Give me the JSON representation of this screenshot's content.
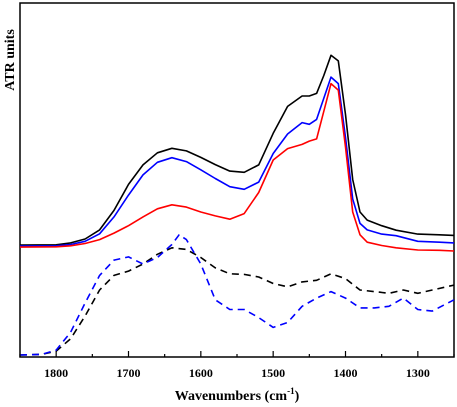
{
  "chart_data": {
    "type": "line",
    "title": "",
    "xlabel": "Wavenumbers (cm",
    "xlabel_sup": "-1",
    "xlabel_close": ")",
    "ylabel": "ATR units",
    "xlim": [
      1850,
      1250
    ],
    "x_reversed": true,
    "ylim": [
      0,
      1
    ],
    "y_ticks_shown": false,
    "grid": false,
    "legend": "none",
    "x_ticks": [
      1800,
      1700,
      1600,
      1500,
      1400,
      1300
    ],
    "series": [
      {
        "color": "#000000",
        "dash": "solid",
        "points": [
          [
            1850,
            0.338
          ],
          [
            1800,
            0.339
          ],
          [
            1780,
            0.345
          ],
          [
            1760,
            0.357
          ],
          [
            1740,
            0.385
          ],
          [
            1720,
            0.445
          ],
          [
            1700,
            0.525
          ],
          [
            1680,
            0.585
          ],
          [
            1660,
            0.622
          ],
          [
            1640,
            0.636
          ],
          [
            1620,
            0.628
          ],
          [
            1600,
            0.608
          ],
          [
            1580,
            0.586
          ],
          [
            1560,
            0.566
          ],
          [
            1540,
            0.562
          ],
          [
            1520,
            0.585
          ],
          [
            1500,
            0.682
          ],
          [
            1480,
            0.765
          ],
          [
            1460,
            0.797
          ],
          [
            1450,
            0.797
          ],
          [
            1440,
            0.805
          ],
          [
            1430,
            0.86
          ],
          [
            1420,
            0.922
          ],
          [
            1410,
            0.905
          ],
          [
            1400,
            0.74
          ],
          [
            1390,
            0.54
          ],
          [
            1380,
            0.44
          ],
          [
            1370,
            0.415
          ],
          [
            1350,
            0.398
          ],
          [
            1330,
            0.384
          ],
          [
            1300,
            0.372
          ],
          [
            1270,
            0.37
          ],
          [
            1250,
            0.368
          ]
        ]
      },
      {
        "color": "#0000ff",
        "dash": "solid",
        "points": [
          [
            1850,
            0.335
          ],
          [
            1800,
            0.336
          ],
          [
            1780,
            0.34
          ],
          [
            1760,
            0.35
          ],
          [
            1740,
            0.373
          ],
          [
            1720,
            0.425
          ],
          [
            1700,
            0.492
          ],
          [
            1680,
            0.554
          ],
          [
            1660,
            0.593
          ],
          [
            1640,
            0.607
          ],
          [
            1620,
            0.595
          ],
          [
            1600,
            0.57
          ],
          [
            1580,
            0.543
          ],
          [
            1560,
            0.518
          ],
          [
            1540,
            0.51
          ],
          [
            1520,
            0.532
          ],
          [
            1500,
            0.62
          ],
          [
            1480,
            0.68
          ],
          [
            1460,
            0.715
          ],
          [
            1450,
            0.71
          ],
          [
            1440,
            0.725
          ],
          [
            1430,
            0.79
          ],
          [
            1420,
            0.855
          ],
          [
            1410,
            0.835
          ],
          [
            1400,
            0.67
          ],
          [
            1390,
            0.48
          ],
          [
            1380,
            0.405
          ],
          [
            1370,
            0.385
          ],
          [
            1350,
            0.372
          ],
          [
            1330,
            0.367
          ],
          [
            1300,
            0.35
          ],
          [
            1270,
            0.347
          ],
          [
            1250,
            0.345
          ]
        ]
      },
      {
        "color": "#ff0000",
        "dash": "solid",
        "points": [
          [
            1850,
            0.332
          ],
          [
            1800,
            0.333
          ],
          [
            1780,
            0.336
          ],
          [
            1760,
            0.343
          ],
          [
            1740,
            0.355
          ],
          [
            1720,
            0.375
          ],
          [
            1700,
            0.398
          ],
          [
            1680,
            0.425
          ],
          [
            1660,
            0.45
          ],
          [
            1640,
            0.462
          ],
          [
            1620,
            0.455
          ],
          [
            1600,
            0.44
          ],
          [
            1580,
            0.428
          ],
          [
            1560,
            0.418
          ],
          [
            1540,
            0.435
          ],
          [
            1520,
            0.5
          ],
          [
            1500,
            0.6
          ],
          [
            1480,
            0.635
          ],
          [
            1460,
            0.648
          ],
          [
            1450,
            0.658
          ],
          [
            1440,
            0.665
          ],
          [
            1430,
            0.75
          ],
          [
            1420,
            0.835
          ],
          [
            1410,
            0.815
          ],
          [
            1400,
            0.64
          ],
          [
            1390,
            0.44
          ],
          [
            1380,
            0.37
          ],
          [
            1370,
            0.347
          ],
          [
            1350,
            0.337
          ],
          [
            1330,
            0.33
          ],
          [
            1300,
            0.323
          ],
          [
            1270,
            0.322
          ],
          [
            1250,
            0.32
          ]
        ]
      },
      {
        "color": "#000000",
        "dash": "dashed",
        "points": [
          [
            1850,
            0.0
          ],
          [
            1820,
            0.002
          ],
          [
            1800,
            0.012
          ],
          [
            1780,
            0.05
          ],
          [
            1760,
            0.12
          ],
          [
            1740,
            0.2
          ],
          [
            1720,
            0.245
          ],
          [
            1700,
            0.258
          ],
          [
            1680,
            0.28
          ],
          [
            1660,
            0.31
          ],
          [
            1640,
            0.33
          ],
          [
            1620,
            0.325
          ],
          [
            1600,
            0.3
          ],
          [
            1580,
            0.268
          ],
          [
            1560,
            0.25
          ],
          [
            1540,
            0.248
          ],
          [
            1520,
            0.24
          ],
          [
            1500,
            0.22
          ],
          [
            1480,
            0.21
          ],
          [
            1460,
            0.225
          ],
          [
            1440,
            0.23
          ],
          [
            1420,
            0.25
          ],
          [
            1400,
            0.235
          ],
          [
            1380,
            0.2
          ],
          [
            1360,
            0.195
          ],
          [
            1340,
            0.19
          ],
          [
            1320,
            0.2
          ],
          [
            1300,
            0.19
          ],
          [
            1280,
            0.2
          ],
          [
            1250,
            0.215
          ]
        ]
      },
      {
        "color": "#0000ff",
        "dash": "dashed",
        "points": [
          [
            1850,
            0.0
          ],
          [
            1820,
            0.002
          ],
          [
            1800,
            0.015
          ],
          [
            1780,
            0.07
          ],
          [
            1760,
            0.16
          ],
          [
            1740,
            0.245
          ],
          [
            1720,
            0.292
          ],
          [
            1700,
            0.302
          ],
          [
            1680,
            0.28
          ],
          [
            1660,
            0.3
          ],
          [
            1640,
            0.34
          ],
          [
            1630,
            0.37
          ],
          [
            1620,
            0.355
          ],
          [
            1600,
            0.28
          ],
          [
            1580,
            0.17
          ],
          [
            1560,
            0.14
          ],
          [
            1540,
            0.14
          ],
          [
            1520,
            0.115
          ],
          [
            1500,
            0.085
          ],
          [
            1480,
            0.1
          ],
          [
            1460,
            0.15
          ],
          [
            1440,
            0.175
          ],
          [
            1420,
            0.195
          ],
          [
            1400,
            0.175
          ],
          [
            1380,
            0.145
          ],
          [
            1360,
            0.145
          ],
          [
            1340,
            0.15
          ],
          [
            1320,
            0.175
          ],
          [
            1300,
            0.14
          ],
          [
            1280,
            0.135
          ],
          [
            1250,
            0.17
          ]
        ]
      }
    ]
  }
}
